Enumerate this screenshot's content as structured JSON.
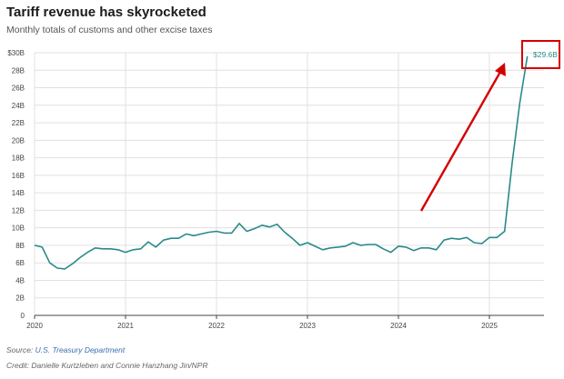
{
  "header": {
    "title": "Tariff revenue has skyrocketed",
    "subtitle": "Monthly totals of customs and other excise taxes"
  },
  "footer": {
    "source_prefix": "Source: ",
    "source_link": "U.S. Treasury Department",
    "credit": "Credit: Danielle Kurtzleben and Connie Hanzhang Jin/NPR"
  },
  "callout": {
    "label": "$29.6B",
    "box_color": "#d40000",
    "arrow_color": "#d40000"
  },
  "colors": {
    "line": "#2a8a8a",
    "grid": "#e0e0e0",
    "axis": "#444444"
  },
  "chart_data": {
    "type": "line",
    "title": "Tariff revenue has skyrocketed",
    "subtitle": "Monthly totals of customs and other excise taxes",
    "xlabel": "",
    "ylabel": "",
    "ylim": [
      0,
      30
    ],
    "xlim": [
      2020.0,
      2025.6
    ],
    "y_ticks": [
      {
        "value": 0,
        "label": "0"
      },
      {
        "value": 2,
        "label": "2B"
      },
      {
        "value": 4,
        "label": "4B"
      },
      {
        "value": 6,
        "label": "6B"
      },
      {
        "value": 8,
        "label": "8B"
      },
      {
        "value": 10,
        "label": "10B"
      },
      {
        "value": 12,
        "label": "12B"
      },
      {
        "value": 14,
        "label": "14B"
      },
      {
        "value": 16,
        "label": "16B"
      },
      {
        "value": 18,
        "label": "18B"
      },
      {
        "value": 20,
        "label": "20B"
      },
      {
        "value": 22,
        "label": "22B"
      },
      {
        "value": 24,
        "label": "24B"
      },
      {
        "value": 26,
        "label": "26B"
      },
      {
        "value": 28,
        "label": "28B"
      },
      {
        "value": 30,
        "label": "$30B"
      }
    ],
    "x_ticks": [
      {
        "value": 2020,
        "label": "2020"
      },
      {
        "value": 2021,
        "label": "2021"
      },
      {
        "value": 2022,
        "label": "2022"
      },
      {
        "value": 2023,
        "label": "2023"
      },
      {
        "value": 2024,
        "label": "2024"
      },
      {
        "value": 2025,
        "label": "2025"
      }
    ],
    "grid": true,
    "series": [
      {
        "name": "",
        "x": [
          "2020-01",
          "2020-02",
          "2020-03",
          "2020-04",
          "2020-05",
          "2020-06",
          "2020-07",
          "2020-08",
          "2020-09",
          "2020-10",
          "2020-11",
          "2020-12",
          "2021-01",
          "2021-02",
          "2021-03",
          "2021-04",
          "2021-05",
          "2021-06",
          "2021-07",
          "2021-08",
          "2021-09",
          "2021-10",
          "2021-11",
          "2021-12",
          "2022-01",
          "2022-02",
          "2022-03",
          "2022-04",
          "2022-05",
          "2022-06",
          "2022-07",
          "2022-08",
          "2022-09",
          "2022-10",
          "2022-11",
          "2022-12",
          "2023-01",
          "2023-02",
          "2023-03",
          "2023-04",
          "2023-05",
          "2023-06",
          "2023-07",
          "2023-08",
          "2023-09",
          "2023-10",
          "2023-11",
          "2023-12",
          "2024-01",
          "2024-02",
          "2024-03",
          "2024-04",
          "2024-05",
          "2024-06",
          "2024-07",
          "2024-08",
          "2024-09",
          "2024-10",
          "2024-11",
          "2024-12",
          "2025-01",
          "2025-02",
          "2025-03",
          "2025-04",
          "2025-05",
          "2025-06"
        ],
        "values": [
          8.0,
          7.8,
          6.0,
          5.4,
          5.3,
          5.9,
          6.6,
          7.2,
          7.7,
          7.6,
          7.6,
          7.5,
          7.2,
          7.5,
          7.6,
          8.4,
          7.8,
          8.6,
          8.8,
          8.8,
          9.3,
          9.1,
          9.3,
          9.5,
          9.6,
          9.4,
          9.4,
          10.5,
          9.6,
          9.9,
          10.3,
          10.1,
          10.4,
          9.5,
          8.8,
          8.0,
          8.3,
          7.9,
          7.5,
          7.7,
          7.8,
          7.9,
          8.3,
          8.0,
          8.1,
          8.1,
          7.6,
          7.2,
          7.9,
          7.8,
          7.4,
          7.7,
          7.7,
          7.5,
          8.6,
          8.8,
          8.7,
          8.9,
          8.3,
          8.2,
          8.9,
          8.9,
          9.6,
          17.4,
          24.2,
          29.6
        ]
      }
    ]
  }
}
